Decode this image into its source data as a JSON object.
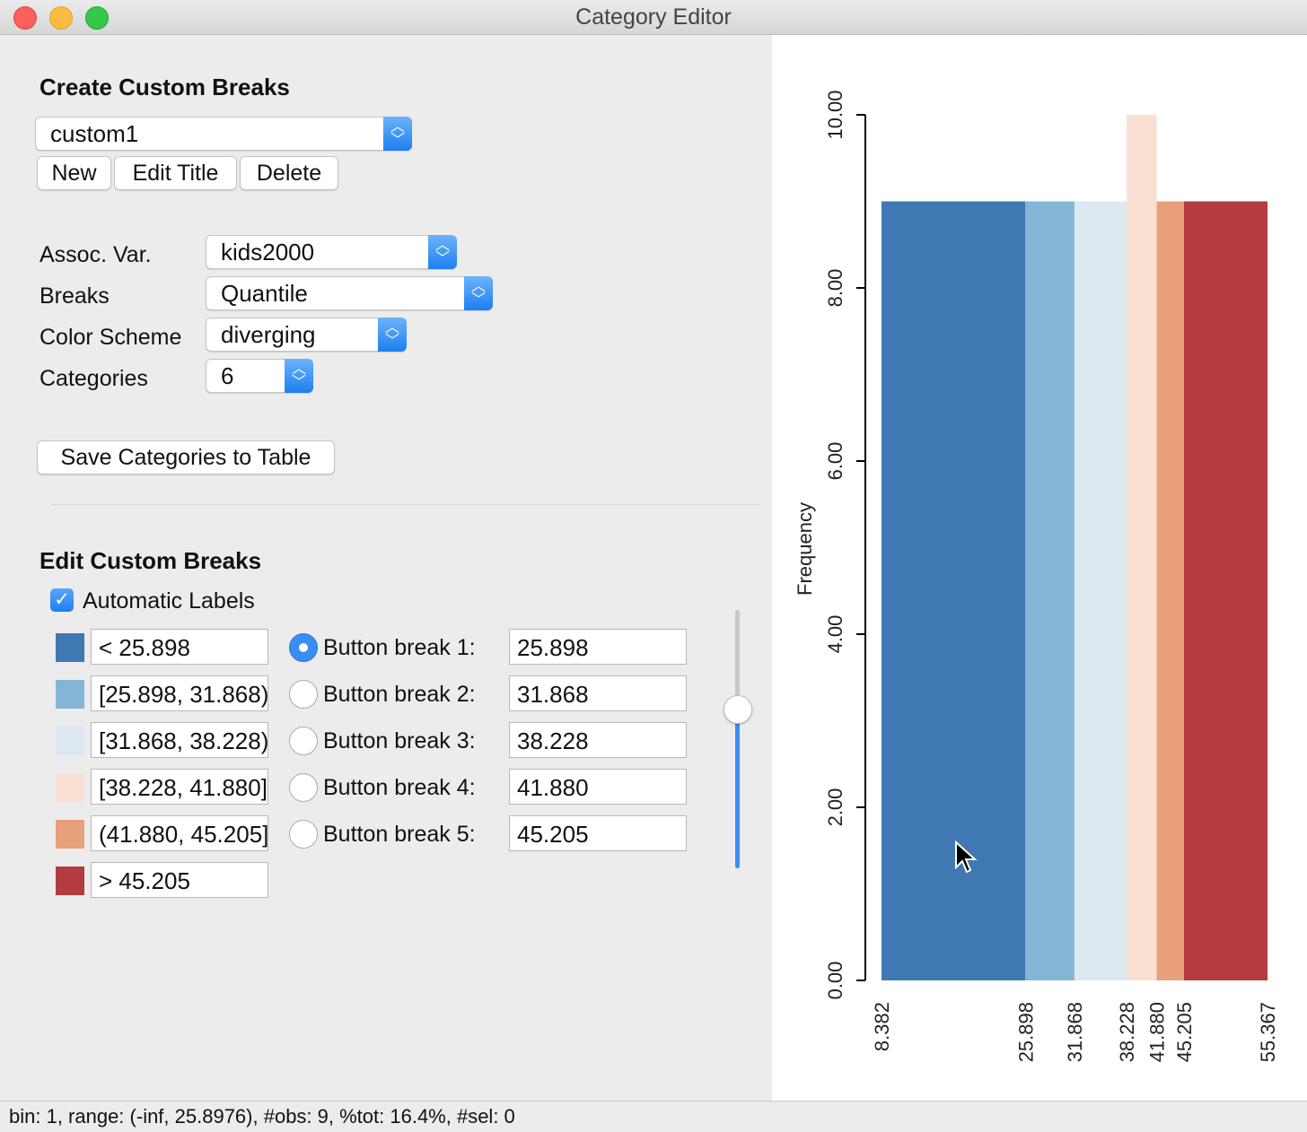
{
  "window": {
    "title": "Category Editor"
  },
  "create": {
    "title": "Create Custom Breaks",
    "selected_break": "custom1",
    "buttons": {
      "new": "New",
      "edit_title": "Edit Title",
      "delete": "Delete"
    }
  },
  "settings": {
    "assoc_var": {
      "label": "Assoc. Var.",
      "value": "kids2000"
    },
    "breaks": {
      "label": "Breaks",
      "value": "Quantile"
    },
    "color_scheme": {
      "label": "Color Scheme",
      "value": "diverging"
    },
    "categories": {
      "label": "Categories",
      "value": "6"
    }
  },
  "save_button": "Save Categories to Table",
  "edit": {
    "title": "Edit Custom Breaks",
    "automatic_labels": {
      "label": "Automatic Labels",
      "checked": true
    },
    "categories": [
      {
        "label": "< 25.898",
        "color": "#3f78b3"
      },
      {
        "label": "[25.898, 31.868)",
        "color": "#84b5d6"
      },
      {
        "label": "[31.868, 38.228)",
        "color": "#dce8f2"
      },
      {
        "label": "[38.228, 41.880]",
        "color": "#f9e0d2"
      },
      {
        "label": "(41.880, 45.205]",
        "color": "#e8a07b"
      },
      {
        "label": "> 45.205",
        "color": "#b43b3f"
      }
    ],
    "breaks": [
      {
        "label": "Button break 1:",
        "value": "25.898",
        "selected": true
      },
      {
        "label": "Button break 2:",
        "value": "31.868",
        "selected": false
      },
      {
        "label": "Button break 3:",
        "value": "38.228",
        "selected": false
      },
      {
        "label": "Button break 4:",
        "value": "41.880",
        "selected": false
      },
      {
        "label": "Button break 5:",
        "value": "45.205",
        "selected": false
      }
    ],
    "slider": {
      "value": 0.62
    }
  },
  "chart_data": {
    "type": "bar",
    "ylabel": "Frequency",
    "ylim": [
      0,
      10
    ],
    "y_ticks": [
      "0.00",
      "2.00",
      "4.00",
      "6.00",
      "8.00",
      "10.00"
    ],
    "x_ticks": [
      "8.382",
      "25.898",
      "31.868",
      "38.228",
      "41.880",
      "45.205",
      "55.367"
    ],
    "bins": [
      {
        "from": 8.382,
        "to": 25.898,
        "frequency": 9,
        "color": "#3f78b3"
      },
      {
        "from": 25.898,
        "to": 31.868,
        "frequency": 9,
        "color": "#84b5d6"
      },
      {
        "from": 31.868,
        "to": 38.228,
        "frequency": 9,
        "color": "#dce8f2"
      },
      {
        "from": 38.228,
        "to": 41.88,
        "frequency": 10,
        "color": "#f9e0d2"
      },
      {
        "from": 41.88,
        "to": 45.205,
        "frequency": 9,
        "color": "#e8a07b"
      },
      {
        "from": 45.205,
        "to": 55.367,
        "frequency": 9,
        "color": "#b43b3f"
      }
    ]
  },
  "status": "bin: 1, range: (-inf, 25.8976), #obs: 9, %tot: 16.4%, #sel: 0"
}
